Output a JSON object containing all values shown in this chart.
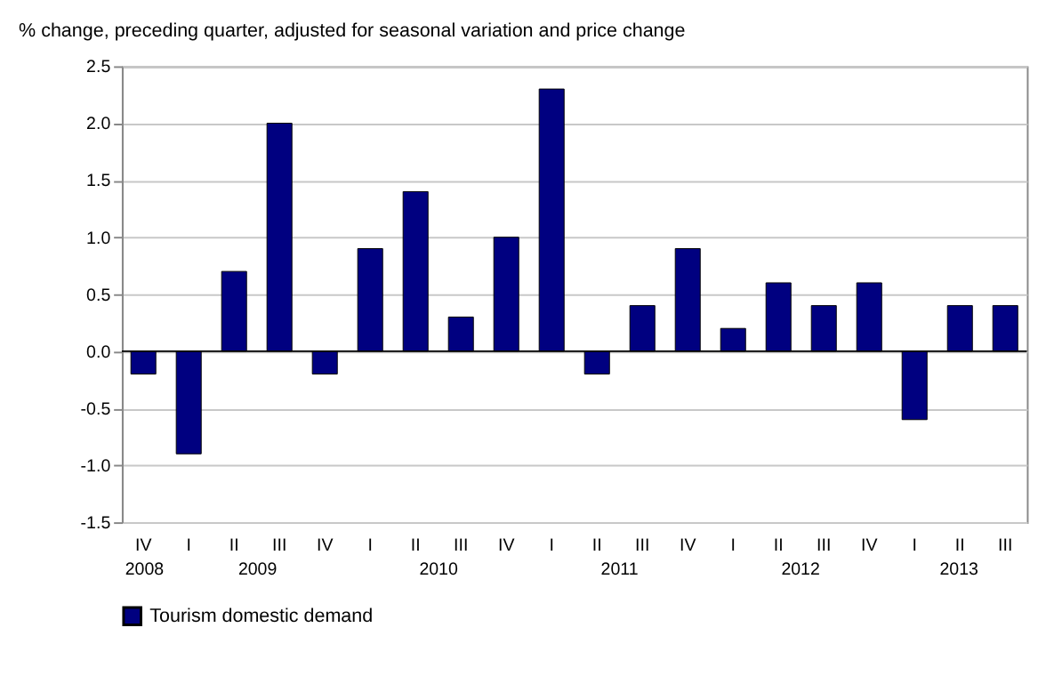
{
  "chart_data": {
    "type": "bar",
    "ylabel": "% change, preceding quarter, adjusted for seasonal variation and price change",
    "categories": [
      "IV",
      "I",
      "II",
      "III",
      "IV",
      "I",
      "II",
      "III",
      "IV",
      "I",
      "II",
      "III",
      "IV",
      "I",
      "II",
      "III",
      "IV",
      "I",
      "II",
      "III"
    ],
    "series": [
      {
        "name": "Tourism domestic demand",
        "color": "#000080",
        "values": [
          -0.2,
          -0.9,
          0.7,
          2.0,
          -0.2,
          0.9,
          1.4,
          0.3,
          1.0,
          2.3,
          -0.2,
          0.4,
          0.9,
          0.2,
          0.6,
          0.4,
          0.6,
          -0.6,
          0.4,
          0.4
        ]
      }
    ],
    "annotations": [
      "2008",
      "2009",
      "2010",
      "2011",
      "2012",
      "2013"
    ],
    "ylim": [
      -1.5,
      2.5
    ],
    "yticks": [
      {
        "value": -1.5,
        "label": "-1.5"
      },
      {
        "value": -1,
        "label": "-1.0"
      },
      {
        "value": -0.5,
        "label": "-0.5"
      },
      {
        "value": 0,
        "label": "0.0"
      },
      {
        "value": 0.5,
        "label": "0.5"
      },
      {
        "value": 1,
        "label": "1.0"
      },
      {
        "value": 1.5,
        "label": "1.5"
      },
      {
        "value": 2,
        "label": "2.0"
      },
      {
        "value": 2.5,
        "label": "2.5"
      }
    ],
    "grid": "y",
    "legend": "bottom"
  }
}
